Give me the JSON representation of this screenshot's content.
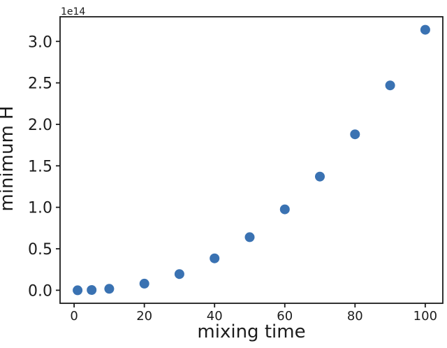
{
  "chart_data": {
    "type": "scatter",
    "title": "",
    "xlabel": "mixing time",
    "ylabel": "minimum H",
    "offset_text": "1e14",
    "x": [
      1,
      5,
      10,
      20,
      30,
      40,
      50,
      60,
      70,
      80,
      90,
      100
    ],
    "y_in_1e14_units": [
      0.0,
      0.003,
      0.017,
      0.08,
      0.195,
      0.385,
      0.64,
      0.975,
      1.37,
      1.88,
      2.47,
      3.14
    ],
    "xlim": [
      -4,
      105
    ],
    "ylim_in_1e14_units": [
      -0.157,
      3.297
    ],
    "xticks": {
      "values": [
        0,
        20,
        40,
        60,
        80,
        100
      ],
      "labels": [
        "0",
        "20",
        "40",
        "60",
        "80",
        "100"
      ]
    },
    "yticks": {
      "values": [
        0,
        0.5,
        1.0,
        1.5,
        2.0,
        2.5,
        3.0
      ],
      "labels": [
        "0.0",
        "0.5",
        "1.0",
        "1.5",
        "2.0",
        "2.5",
        "3.0"
      ]
    },
    "marker": {
      "shape": "circle",
      "color": "#3a72b2",
      "radius_px": 7
    },
    "axis_color": "#1c1c1c",
    "background_color": "#ffffff",
    "grid": false,
    "legend": "none"
  }
}
